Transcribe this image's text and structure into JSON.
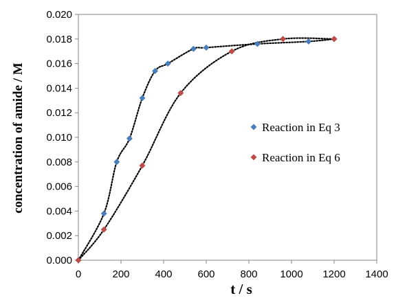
{
  "chart_data": {
    "type": "scatter",
    "xlabel": "t / s",
    "ylabel": "concentration of  amide / M",
    "xlim": [
      0,
      1400
    ],
    "ylim": [
      0,
      0.02
    ],
    "x_ticks": [
      "0",
      "200",
      "400",
      "600",
      "800",
      "1000",
      "1200",
      "1400"
    ],
    "y_ticks": [
      "0.000",
      "0.002",
      "0.004",
      "0.006",
      "0.008",
      "0.010",
      "0.012",
      "0.014",
      "0.016",
      "0.018",
      "0.020"
    ],
    "grid": false,
    "legend_position": "right",
    "trendlines": "dotted",
    "series": [
      {
        "name": "Reaction in Eq 3",
        "color": "#4a7ebb",
        "marker": "diamond",
        "points": [
          [
            0,
            0.0
          ],
          [
            120,
            0.0038
          ],
          [
            180,
            0.008
          ],
          [
            240,
            0.0099
          ],
          [
            300,
            0.0132
          ],
          [
            360,
            0.0154
          ],
          [
            420,
            0.016
          ],
          [
            540,
            0.0172
          ],
          [
            600,
            0.0173
          ],
          [
            840,
            0.0176
          ],
          [
            1080,
            0.0178
          ],
          [
            1200,
            0.018
          ]
        ]
      },
      {
        "name": "Reaction in Eq 6",
        "color": "#be4b48",
        "marker": "diamond",
        "points": [
          [
            0,
            0.0
          ],
          [
            120,
            0.0025
          ],
          [
            300,
            0.0077
          ],
          [
            480,
            0.0136
          ],
          [
            720,
            0.017
          ],
          [
            960,
            0.018
          ],
          [
            1200,
            0.018
          ]
        ]
      }
    ]
  }
}
